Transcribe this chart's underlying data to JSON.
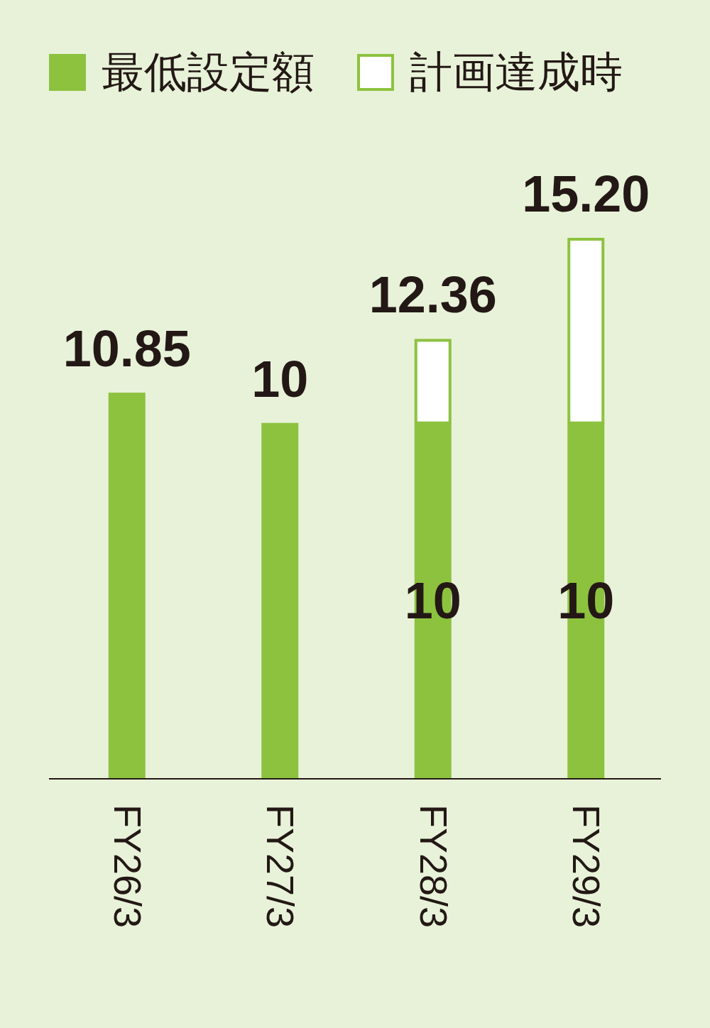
{
  "chart_data": {
    "type": "bar",
    "stacked": true,
    "categories": [
      "FY26/3",
      "FY27/3",
      "FY28/3",
      "FY29/3"
    ],
    "series": [
      {
        "name": "最低設定額",
        "color": "#8dc23f",
        "values": [
          10.85,
          10,
          10,
          10
        ],
        "value_labels": [
          null,
          null,
          "10",
          "10"
        ]
      },
      {
        "name": "計画達成時",
        "color": "#ffffff",
        "values": [
          null,
          null,
          2.36,
          5.2
        ]
      }
    ],
    "totals": [
      "10.85",
      "10",
      "12.36",
      "15.20"
    ],
    "legend": "top left"
  }
}
